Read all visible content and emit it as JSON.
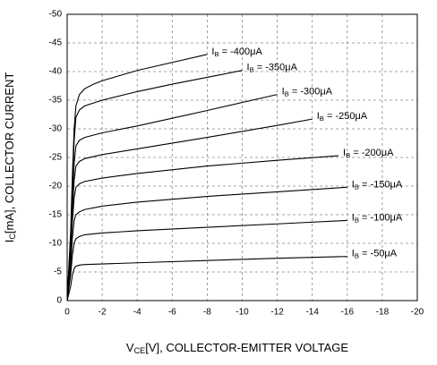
{
  "chart_data": {
    "type": "line",
    "xlabel": "VCE[V], COLLECTOR-EMITTER VOLTAGE",
    "ylabel": "IC[mA], COLLECTOR CURRENT",
    "xlim": [
      0,
      -20
    ],
    "ylim": [
      0,
      -50
    ],
    "xticks": [
      0,
      -2,
      -4,
      -6,
      -8,
      -10,
      -12,
      -14,
      -16,
      -18,
      -20
    ],
    "yticks": [
      0,
      -5,
      -10,
      -15,
      -20,
      -25,
      -30,
      -35,
      -40,
      -45,
      -50
    ],
    "grid": true,
    "series": [
      {
        "name": "IB = -400μA",
        "color": "#000000",
        "x": [
          0,
          -0.2,
          -0.3,
          -0.4,
          -0.5,
          -0.7,
          -1,
          -1.5,
          -2,
          -3,
          -4,
          -6,
          -8
        ],
        "values": [
          0,
          -12,
          -22,
          -30,
          -34,
          -36,
          -37,
          -37.8,
          -38.4,
          -39.3,
          -40.2,
          -41.6,
          -43
        ]
      },
      {
        "name": "IB = -350μA",
        "color": "#000000",
        "x": [
          0,
          -0.2,
          -0.3,
          -0.4,
          -0.5,
          -0.7,
          -1,
          -2,
          -4,
          -6,
          -8,
          -10
        ],
        "values": [
          0,
          -11,
          -20,
          -28,
          -32,
          -33.3,
          -34,
          -35,
          -36.5,
          -37.8,
          -39,
          -40.2
        ]
      },
      {
        "name": "IB = -300μA",
        "color": "#000000",
        "x": [
          0,
          -0.2,
          -0.3,
          -0.4,
          -0.5,
          -0.7,
          -1,
          -2,
          -4,
          -8,
          -12
        ],
        "values": [
          0,
          -10,
          -18,
          -24,
          -27,
          -28,
          -28.5,
          -29.3,
          -30.5,
          -33.2,
          -36
        ]
      },
      {
        "name": "IB = -250μA",
        "color": "#000000",
        "x": [
          0,
          -0.2,
          -0.3,
          -0.4,
          -0.5,
          -0.7,
          -1,
          -2,
          -4,
          -8,
          -12,
          -14
        ],
        "values": [
          0,
          -9,
          -16,
          -21,
          -23.5,
          -24.3,
          -24.8,
          -25.5,
          -26.5,
          -28.5,
          -30.6,
          -31.7
        ]
      },
      {
        "name": "IB = -200μA",
        "color": "#000000",
        "x": [
          0,
          -0.2,
          -0.3,
          -0.4,
          -0.5,
          -0.7,
          -1,
          -2,
          -4,
          -8,
          -12,
          -15.5
        ],
        "values": [
          0,
          -8,
          -14,
          -18,
          -19.8,
          -20.4,
          -20.8,
          -21.4,
          -22.2,
          -23.5,
          -24.5,
          -25.3
        ]
      },
      {
        "name": "IB = -150μA",
        "color": "#000000",
        "x": [
          0,
          -0.2,
          -0.3,
          -0.4,
          -0.5,
          -0.7,
          -1,
          -2,
          -4,
          -8,
          -12,
          -16
        ],
        "values": [
          0,
          -6,
          -11,
          -14,
          -15,
          -15.5,
          -15.9,
          -16.5,
          -17.2,
          -18.2,
          -19,
          -19.8
        ]
      },
      {
        "name": "IB = -100μA",
        "color": "#000000",
        "x": [
          0,
          -0.2,
          -0.3,
          -0.4,
          -0.5,
          -0.7,
          -1,
          -2,
          -4,
          -8,
          -12,
          -16
        ],
        "values": [
          0,
          -4.5,
          -8,
          -10,
          -10.8,
          -11.2,
          -11.5,
          -11.8,
          -12.2,
          -12.8,
          -13.4,
          -14
        ]
      },
      {
        "name": "IB = -50μA",
        "color": "#000000",
        "x": [
          0,
          -0.2,
          -0.3,
          -0.4,
          -0.5,
          -0.7,
          -1,
          -2,
          -4,
          -8,
          -12,
          -16
        ],
        "values": [
          0,
          -2.5,
          -4.5,
          -5.6,
          -6,
          -6.2,
          -6.3,
          -6.4,
          -6.6,
          -7,
          -7.4,
          -7.7
        ]
      }
    ]
  }
}
